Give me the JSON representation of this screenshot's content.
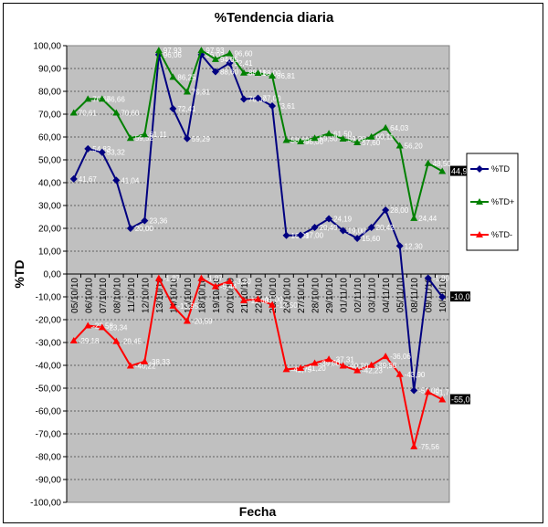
{
  "chart_data": {
    "type": "line",
    "title": "%Tendencia diaria",
    "xlabel": "Fecha",
    "ylabel": "%TD",
    "ylim": [
      -100,
      100
    ],
    "ytick_step": 10,
    "yticks": [
      "100,00",
      "90,00",
      "80,00",
      "70,00",
      "60,00",
      "50,00",
      "40,00",
      "30,00",
      "20,00",
      "10,00",
      "0,00",
      "-10,00",
      "-20,00",
      "-30,00",
      "-40,00",
      "-50,00",
      "-60,00",
      "-70,00",
      "-80,00",
      "-90,00",
      "-100,00"
    ],
    "grid": true,
    "legend_position": "right",
    "categories": [
      "05/10/10",
      "06/10/10",
      "07/10/10",
      "08/10/10",
      "11/10/10",
      "12/10/10",
      "13/10/10",
      "14/10/10",
      "15/10/10",
      "18/10/10",
      "19/10/10",
      "20/10/10",
      "21/10/10",
      "22/10/10",
      "25/10/10",
      "26/10/10",
      "27/10/10",
      "28/10/10",
      "29/10/10",
      "01/11/10",
      "02/11/10",
      "03/11/10",
      "04/11/10",
      "05/11/10",
      "08/11/10",
      "09/11/10",
      "10/11/10"
    ],
    "series": [
      {
        "name": "%TD",
        "color": "#000080",
        "marker": "diamond",
        "values": [
          41.67,
          54.83,
          53.32,
          41.04,
          20.0,
          23.36,
          96.06,
          72.41,
          59.29,
          96.03,
          88.6,
          92.41,
          76.6,
          77.0,
          73.61,
          16.88,
          17.0,
          20.4,
          24.19,
          19.0,
          15.6,
          20.42,
          28.0,
          12.3,
          -51.0,
          -1.8,
          -10.05
        ],
        "labels": [
          "41,67",
          "54,83",
          "53,32",
          "41,04",
          "20,00",
          "23,36",
          "96,06",
          "72,41",
          "59,29",
          "96,03",
          "88,60",
          "92,41",
          "76,60",
          "77,00",
          "73,61",
          "16,88",
          "17,00",
          "20,40",
          "24,19",
          "19,00",
          "15,60",
          "20,42",
          "28,00",
          "12,30",
          "-51,00",
          "-1,80",
          "-10,05"
        ]
      },
      {
        "name": "%TD+",
        "color": "#008000",
        "marker": "triangle",
        "values": [
          70.61,
          76.66,
          76.66,
          70.6,
          59.52,
          61.11,
          97.93,
          86.25,
          79.81,
          97.93,
          94.05,
          96.6,
          88.11,
          88.0,
          86.81,
          58.6,
          58.0,
          59.5,
          61.5,
          59.2,
          57.6,
          60.11,
          64.03,
          56.2,
          24.44,
          48.5,
          44.98
        ],
        "labels": [
          "70,61",
          "76,66",
          "76,66",
          "70,60",
          "59,52",
          "61,11",
          "97,93",
          "86,25",
          "79,81",
          "97,93",
          "94,05",
          "96,60",
          "88,11",
          "88,00",
          "86,81",
          "58,60",
          "58,00",
          "59,50",
          "61,50",
          "59,20",
          "57,60",
          "60,11",
          "64,03",
          "56,20",
          "24,44",
          "48,50",
          "44,98"
        ]
      },
      {
        "name": "%TD-",
        "color": "#ff0000",
        "marker": "triangle",
        "values": [
          -29.18,
          -22.58,
          -23.34,
          -29.45,
          -40.22,
          -38.33,
          -1.87,
          -13.95,
          -20.59,
          -1.87,
          -5.44,
          -3.2,
          -11.6,
          -11.0,
          -13.5,
          -41.75,
          -41.2,
          -39.0,
          -37.31,
          -40.2,
          -42.23,
          -39.9,
          -36.06,
          -43.9,
          -75.56,
          -51.7,
          -55.02
        ],
        "labels": [
          "-29,18",
          "-22,58",
          "-23,34",
          "-29,45",
          "-40,22",
          "-38,33",
          "-1,87",
          "-13,95",
          "-20,59",
          "-1,87",
          "-5,44",
          "-3,20",
          "-11,60",
          "-11,00",
          "-13,50",
          "-41,75",
          "-41,20",
          "-39,00",
          "-37,31",
          "-40,20",
          "-42,23",
          "-39,90",
          "-36,06",
          "-43,90",
          "-75,56",
          "-51,70",
          "-55,02"
        ]
      }
    ]
  }
}
